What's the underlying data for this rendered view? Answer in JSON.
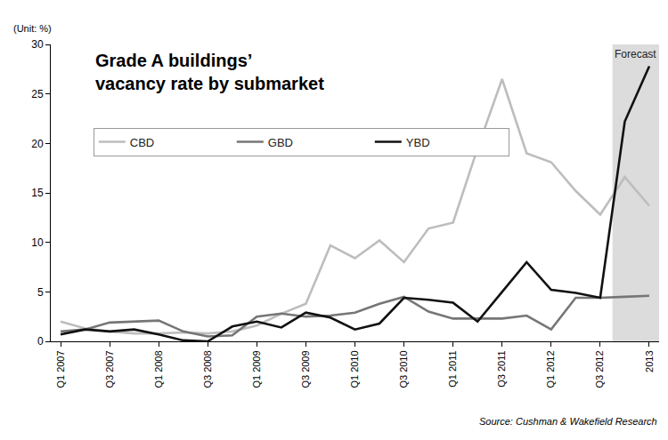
{
  "chart_data": {
    "type": "line",
    "title": [
      "Grade A buildings’",
      "vacancy rate by submarket"
    ],
    "y_label": "(Unit: %)",
    "source": "Source: Cushman & Wakefield Research",
    "forecast": {
      "label": "Forecast",
      "from": 23,
      "to": 24
    },
    "categories": [
      "Q1 2007",
      null,
      "Q3 2007",
      null,
      "Q1 2008",
      null,
      "Q3 2008",
      null,
      "Q1 2009",
      null,
      "Q3 2009",
      null,
      "Q1 2010",
      null,
      "Q3 2010",
      null,
      "Q1 2011",
      null,
      "Q3 2011",
      null,
      "Q1 2012",
      null,
      "Q3 2012",
      null,
      "2013"
    ],
    "series": [
      {
        "name": "CBD",
        "color": "#bdbdbd",
        "values": [
          2.0,
          1.3,
          1.0,
          0.8,
          0.8,
          0.9,
          0.8,
          1.0,
          1.6,
          2.8,
          3.8,
          9.7,
          8.4,
          10.2,
          8.0,
          11.4,
          12.0,
          19.5,
          26.5,
          19.0,
          18.1,
          15.2,
          12.8,
          16.6,
          13.7
        ]
      },
      {
        "name": "GBD",
        "color": "#767676",
        "values": [
          1.0,
          1.2,
          1.9,
          2.0,
          2.1,
          1.0,
          0.5,
          0.6,
          2.5,
          2.8,
          2.5,
          2.6,
          2.9,
          3.8,
          4.5,
          3.0,
          2.3,
          2.3,
          2.3,
          2.6,
          1.2,
          4.4,
          4.4,
          4.5,
          4.6
        ]
      },
      {
        "name": "YBD",
        "color": "#111111",
        "values": [
          0.7,
          1.2,
          1.0,
          1.2,
          0.7,
          0.1,
          0.0,
          1.5,
          2.0,
          1.4,
          2.9,
          2.4,
          1.2,
          1.8,
          4.4,
          4.2,
          3.9,
          2.0,
          5.0,
          8.0,
          5.2,
          4.9,
          4.4,
          22.2,
          27.8
        ]
      }
    ],
    "ylim": [
      0,
      30
    ],
    "yticks": [
      0,
      5,
      10,
      15,
      20,
      25,
      30
    ],
    "grid": false,
    "legend": "upper left"
  }
}
